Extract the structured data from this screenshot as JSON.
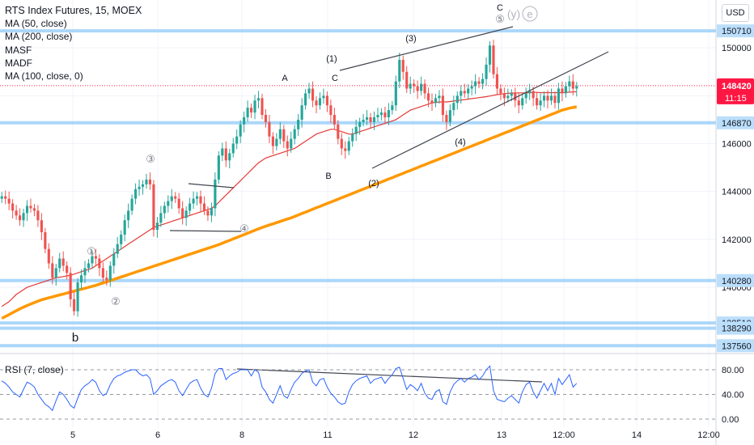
{
  "legend": {
    "title": "RTS Index Futures, 15, MOEX",
    "lines": [
      "MA (50, close)",
      "MA (200, close)",
      "MASF",
      "MADF",
      "MA (100, close, 0)"
    ]
  },
  "rsi_label": "RSI (7, close)",
  "currency": "USD",
  "colors": {
    "candle_up": "#26a69a",
    "candle_down": "#ef5350",
    "ma_red": "#e53935",
    "ma_orange": "#ff9800",
    "level_blue": "#90caf9",
    "rsi_line": "#2962ff",
    "trend_line": "#434651",
    "price_tag": "#ff1744",
    "text": "#131722"
  },
  "chart_data": [
    {
      "type": "candlestick",
      "title": "",
      "ylim": [
        137400,
        152000
      ],
      "y_ticks": [
        140000,
        142000,
        144000,
        146000,
        148000,
        150000
      ],
      "x_labels": [
        "5",
        "6",
        "8",
        "11",
        "12",
        "13",
        "12:00",
        "14",
        "12:00"
      ],
      "price_levels": [
        150710,
        146870,
        140280,
        138510,
        138290,
        137560
      ],
      "current_price": 148420,
      "countdown": "11:15",
      "closes": [
        143800,
        143700,
        143500,
        143200,
        143000,
        142800,
        143100,
        143400,
        143300,
        143200,
        142800,
        142300,
        141600,
        141000,
        140400,
        140800,
        141200,
        140900,
        140600,
        139500,
        139000,
        140200,
        140500,
        140800,
        141000,
        141300,
        141200,
        140800,
        140400,
        140300,
        140900,
        141400,
        141800,
        142200,
        142800,
        143200,
        143700,
        144100,
        144200,
        144300,
        144500,
        144300,
        142400,
        142700,
        143100,
        143400,
        143600,
        143800,
        143700,
        143300,
        142900,
        143200,
        143500,
        143700,
        143800,
        143500,
        143200,
        143000,
        143300,
        144500,
        145500,
        145800,
        145300,
        145600,
        146000,
        146300,
        146800,
        147100,
        147500,
        147300,
        147800,
        147900,
        147200,
        146900,
        146300,
        145900,
        146200,
        146600,
        146100,
        145800,
        146200,
        146600,
        147000,
        147600,
        148100,
        148300,
        147800,
        147600,
        147900,
        148000,
        147600,
        147200,
        146800,
        146200,
        145800,
        145700,
        146100,
        146400,
        146700,
        146900,
        147000,
        147100,
        146900,
        147100,
        147200,
        147300,
        147100,
        147400,
        147600,
        148600,
        149500,
        149000,
        148300,
        148500,
        148400,
        148200,
        148500,
        148100,
        147800,
        147700,
        147900,
        148000,
        147200,
        146900,
        147400,
        147700,
        148000,
        148200,
        148100,
        148300,
        148400,
        148600,
        148500,
        148700,
        149300,
        150100,
        148900,
        148300,
        148100,
        147900,
        148000,
        148100,
        147800,
        147600,
        147900,
        148100,
        148200,
        147900,
        147600,
        147800,
        148000,
        147800,
        148000,
        147700,
        148300,
        148100,
        148400,
        148600,
        148300,
        148400
      ],
      "series": [
        {
          "name": "MA (50, close)",
          "values": [
            139200,
            139300,
            139400,
            139550,
            139700,
            139800,
            139900,
            140000,
            140050,
            140100,
            140150,
            140200,
            140250,
            140300,
            140350,
            140400,
            140420,
            140450,
            140480,
            140500,
            140550,
            140600,
            140650,
            140700,
            140750,
            140800,
            140900,
            141000,
            141100,
            141200,
            141300,
            141400,
            141500,
            141600,
            141700,
            141800,
            141900,
            142000,
            142100,
            142200,
            142300,
            142400,
            142500,
            142550,
            142600,
            142650,
            142700,
            142750,
            142800,
            142850,
            142900,
            142950,
            143000,
            143050,
            143100,
            143150,
            143200,
            143250,
            143300,
            143400,
            143550,
            143700,
            143850,
            144000,
            144150,
            144300,
            144450,
            144600,
            144750,
            144900,
            145050,
            145200,
            145300,
            145400,
            145450,
            145500,
            145550,
            145600,
            145650,
            145700,
            145750,
            145800,
            145900,
            146000,
            146100,
            146200,
            146300,
            146400,
            146450,
            146500,
            146550,
            146600,
            146600,
            146550,
            146500,
            146450,
            146400,
            146400,
            146450,
            146500,
            146550,
            146600,
            146650,
            146700,
            146750,
            146800,
            146850,
            146900,
            146950,
            147000,
            147100,
            147200,
            147300,
            147400,
            147450,
            147500,
            147550,
            147600,
            147650,
            147700,
            147720,
            147740,
            147740,
            147740,
            147760,
            147780,
            147800,
            147820,
            147840,
            147860,
            147880,
            147900,
            147920,
            147940,
            147960,
            147990,
            148020,
            148050,
            148070,
            148090,
            148100,
            148110,
            148120,
            148120,
            148120,
            148120,
            148130,
            148140,
            148140,
            148130,
            148130,
            148130,
            148130,
            148130,
            148130,
            148130,
            148140,
            148150,
            148160,
            148170
          ]
        },
        {
          "name": "MA (200, close)",
          "values": [
            138700,
            138780,
            138860,
            138940,
            139020,
            139100,
            139170,
            139240,
            139300,
            139360,
            139420,
            139480,
            139520,
            139560,
            139600,
            139640,
            139680,
            139720,
            139760,
            139800,
            139840,
            139880,
            139920,
            139960,
            140000,
            140040,
            140080,
            140130,
            140180,
            140230,
            140280,
            140330,
            140380,
            140430,
            140480,
            140530,
            140580,
            140630,
            140680,
            140730,
            140780,
            140830,
            140880,
            140930,
            140980,
            141030,
            141080,
            141130,
            141180,
            141230,
            141280,
            141330,
            141380,
            141430,
            141480,
            141530,
            141580,
            141630,
            141680,
            141730,
            141780,
            141840,
            141900,
            141960,
            142020,
            142080,
            142140,
            142200,
            142260,
            142320,
            142380,
            142440,
            142500,
            142550,
            142600,
            142650,
            142700,
            142750,
            142800,
            142850,
            142900,
            142960,
            143020,
            143080,
            143140,
            143200,
            143260,
            143320,
            143380,
            143440,
            143500,
            143560,
            143620,
            143680,
            143740,
            143800,
            143860,
            143920,
            143980,
            144040,
            144100,
            144160,
            144220,
            144280,
            144340,
            144400,
            144460,
            144520,
            144580,
            144640,
            144700,
            144760,
            144820,
            144880,
            144940,
            145000,
            145060,
            145120,
            145180,
            145240,
            145300,
            145360,
            145420,
            145480,
            145540,
            145600,
            145660,
            145720,
            145780,
            145840,
            145900,
            145960,
            146020,
            146080,
            146140,
            146200,
            146260,
            146320,
            146380,
            146440,
            146500,
            146560,
            146620,
            146680,
            146740,
            146800,
            146860,
            146920,
            146980,
            147040,
            147100,
            147160,
            147220,
            147280,
            147340,
            147400,
            147440,
            147480,
            147510,
            147540
          ]
        }
      ]
    },
    {
      "type": "line",
      "title": "RSI (7, close)",
      "ylim": [
        0,
        100
      ],
      "y_ticks": [
        0.0,
        40.0,
        80.0
      ],
      "values": [
        62,
        58,
        52,
        44,
        40,
        36,
        48,
        60,
        57,
        52,
        40,
        32,
        24,
        20,
        14,
        30,
        44,
        40,
        32,
        22,
        18,
        34,
        48,
        54,
        58,
        64,
        60,
        46,
        38,
        42,
        56,
        66,
        70,
        72,
        76,
        78,
        80,
        80,
        74,
        70,
        72,
        66,
        40,
        46,
        54,
        58,
        62,
        64,
        60,
        46,
        38,
        48,
        58,
        62,
        64,
        50,
        40,
        36,
        50,
        74,
        82,
        82,
        64,
        70,
        74,
        76,
        80,
        80,
        80,
        70,
        80,
        76,
        52,
        44,
        32,
        26,
        40,
        54,
        38,
        34,
        48,
        60,
        66,
        74,
        78,
        80,
        60,
        54,
        64,
        66,
        52,
        42,
        36,
        28,
        24,
        26,
        44,
        56,
        62,
        66,
        68,
        70,
        58,
        64,
        66,
        68,
        58,
        66,
        72,
        82,
        84,
        66,
        48,
        56,
        52,
        46,
        58,
        42,
        34,
        32,
        44,
        48,
        28,
        24,
        44,
        56,
        62,
        66,
        60,
        66,
        68,
        72,
        64,
        70,
        80,
        86,
        46,
        32,
        30,
        28,
        34,
        38,
        32,
        26,
        44,
        56,
        60,
        44,
        34,
        46,
        58,
        46,
        58,
        40,
        66,
        56,
        64,
        72,
        52,
        58
      ]
    }
  ],
  "annotations": {
    "wave_labels": [
      "A",
      "B",
      "C",
      "(1)",
      "(2)",
      "(3)",
      "(4)",
      "C",
      "b"
    ],
    "circled": [
      "①",
      "②",
      "③",
      "④",
      "⑤"
    ],
    "letter_circled": [
      "y",
      "e"
    ]
  }
}
